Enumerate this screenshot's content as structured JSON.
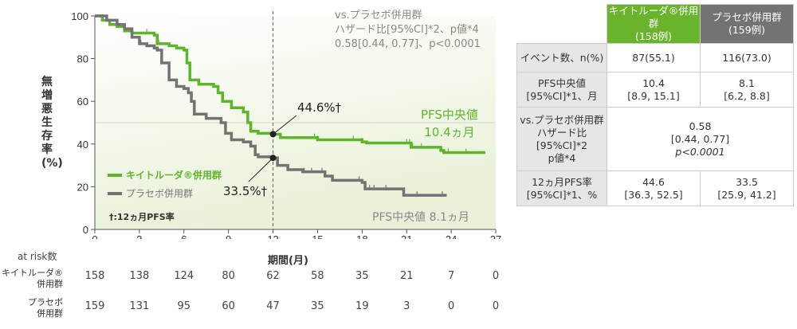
{
  "chart_data": {
    "type": "line",
    "subtype": "kaplan-meier step",
    "ylabel": "無増悪生存率(%)",
    "xlabel": "期間(月)",
    "xlim": [
      0,
      27
    ],
    "ylim": [
      0,
      100
    ],
    "xticks": [
      0,
      3,
      6,
      9,
      12,
      15,
      18,
      21,
      24,
      27
    ],
    "yticks": [
      0,
      20,
      40,
      60,
      80,
      100
    ],
    "legend": "bottom-left",
    "series": [
      {
        "name": "キイトルーダ®併用群",
        "color": "#5db52c",
        "points": [
          [
            0,
            100
          ],
          [
            0.5,
            98
          ],
          [
            1,
            96
          ],
          [
            1.5,
            95
          ],
          [
            2,
            93
          ],
          [
            2.5,
            92
          ],
          [
            3.8,
            92
          ],
          [
            4,
            91
          ],
          [
            4.2,
            87
          ],
          [
            5,
            86
          ],
          [
            5.5,
            85
          ],
          [
            6,
            84
          ],
          [
            6.2,
            78
          ],
          [
            6.4,
            70
          ],
          [
            7,
            68
          ],
          [
            8,
            67
          ],
          [
            8.3,
            64
          ],
          [
            8.6,
            60
          ],
          [
            9.2,
            57
          ],
          [
            10,
            55
          ],
          [
            10.3,
            50
          ],
          [
            10.5,
            46
          ],
          [
            11,
            45
          ],
          [
            12,
            44.6
          ],
          [
            12.5,
            43
          ],
          [
            15,
            42
          ],
          [
            18,
            41
          ],
          [
            18.3,
            40.5
          ],
          [
            21.3,
            38.5
          ],
          [
            23.3,
            37
          ],
          [
            23.5,
            36
          ],
          [
            26.3,
            36
          ]
        ],
        "censor": [
          0.5,
          3.5,
          4.3,
          9.2,
          14.8,
          15,
          17.4,
          18,
          21,
          21.2,
          21.4,
          22,
          23.8,
          25
        ]
      },
      {
        "name": "プラセボ併用群",
        "color": "#737373",
        "points": [
          [
            0,
            100
          ],
          [
            0.8,
            98
          ],
          [
            1.5,
            96
          ],
          [
            2,
            94
          ],
          [
            2.5,
            90
          ],
          [
            3,
            87
          ],
          [
            3.5,
            86
          ],
          [
            4,
            85
          ],
          [
            4.2,
            84
          ],
          [
            4.5,
            78
          ],
          [
            5,
            70
          ],
          [
            5.5,
            67
          ],
          [
            6,
            66
          ],
          [
            6.3,
            64
          ],
          [
            6.5,
            60
          ],
          [
            6.7,
            54
          ],
          [
            7.5,
            52
          ],
          [
            8.5,
            50
          ],
          [
            8.8,
            45
          ],
          [
            9.2,
            42
          ],
          [
            10,
            41
          ],
          [
            10.5,
            39
          ],
          [
            10.8,
            35
          ],
          [
            11,
            34
          ],
          [
            12,
            33.5
          ],
          [
            12.3,
            30
          ],
          [
            13,
            28
          ],
          [
            14,
            27
          ],
          [
            15.5,
            25
          ],
          [
            16,
            23
          ],
          [
            18,
            22
          ],
          [
            18.2,
            19
          ],
          [
            20.5,
            19
          ],
          [
            20.8,
            16
          ],
          [
            23.7,
            16
          ]
        ],
        "censor": [
          3.1,
          14.1,
          14.6,
          15.3,
          17.8,
          18.5,
          18.8,
          19.6,
          21.7,
          23.4
        ]
      }
    ],
    "annotations": {
      "median_line": 50,
      "vline_month": 12,
      "green_12m": "44.6%†",
      "grey_12m": "33.5%†",
      "green_median_1": "PFS中央値",
      "green_median_2": "10.4ヵ月",
      "grey_median": "PFS中央値 8.1ヵ月",
      "footnote": "†:12ヵ月PFS率",
      "hr_1": "vs.プラセボ併用群",
      "hr_2": "ハザード比[95%CI]*2、p値*4",
      "hr_3": "0.58[0.44, 0.77]、p<0.0001"
    },
    "at_risk": {
      "title": "at risk数",
      "rows": [
        {
          "label1": "キイトルーダ®",
          "label2": "併用群",
          "values": [
            "158",
            "138",
            "124",
            "80",
            "62",
            "58",
            "35",
            "21",
            "7",
            "0"
          ]
        },
        {
          "label1": "プラセボ",
          "label2": "併用群",
          "values": [
            "159",
            "131",
            "95",
            "60",
            "47",
            "35",
            "19",
            "3",
            "0",
            "0"
          ]
        }
      ]
    }
  },
  "summary_table": {
    "head_green_1": "キイトルーダ®併用群",
    "head_green_2": "(158例)",
    "head_grey_1": "プラセボ併用群",
    "head_grey_2": "(159例)",
    "rows": [
      {
        "l1": "イベント数、n(%)",
        "g1": "87(55.1)",
        "p1": "116(73.0)"
      },
      {
        "l1": "PFS中央値",
        "l2": "[95%CI]*1、月",
        "g1": "10.4",
        "g2": "[8.9, 15.1]",
        "p1": "8.1",
        "p2": "[6.2, 8.8]"
      },
      {
        "l1": "vs.プラセボ併用群",
        "l2": "ハザード比",
        "l3": "[95%CI]*2",
        "l4": "p値*4",
        "v1": "0.58",
        "v2": "[0.44, 0.77]",
        "v3": "p<0.0001"
      },
      {
        "l1": "12ヵ月PFS率",
        "l2": "[95%CI]*1、%",
        "g1": "44.6",
        "g2": "[36.3, 52.5]",
        "p1": "33.5",
        "p2": "[25.9, 41.2]"
      }
    ]
  }
}
